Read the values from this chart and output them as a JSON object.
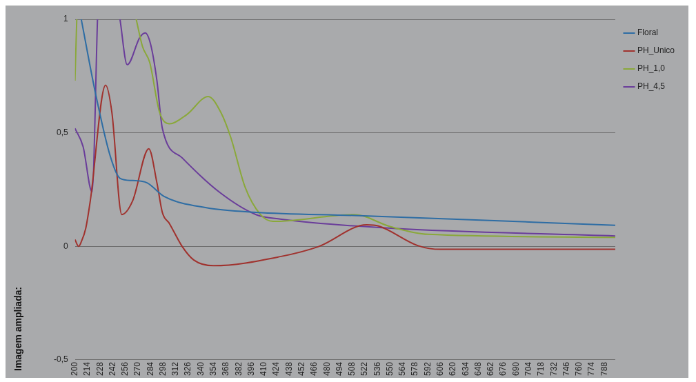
{
  "chart_data": {
    "type": "line",
    "annotations": [
      "Imagem ampliada:"
    ],
    "xlim": [
      200,
      800
    ],
    "xticks": [
      200,
      214,
      228,
      242,
      256,
      270,
      284,
      298,
      312,
      326,
      340,
      354,
      368,
      382,
      396,
      410,
      424,
      438,
      452,
      466,
      480,
      494,
      508,
      522,
      536,
      550,
      564,
      578,
      592,
      606,
      620,
      634,
      648,
      662,
      676,
      690,
      704,
      718,
      732,
      746,
      760,
      774,
      788
    ],
    "ylim": [
      -0.5,
      1
    ],
    "yticks": [
      {
        "value": -0.5,
        "label": "-0,5"
      },
      0,
      {
        "value": 0.5,
        "label": "0,5"
      },
      1
    ],
    "grid": "y",
    "legend": "top right",
    "marker": "none",
    "series": [
      {
        "name": "Floral",
        "color": "#2e6da4",
        "values": [
          1,
          0.67,
          0.4,
          0.3,
          0.29,
          0.28,
          0.22,
          0.17,
          0.15,
          0.136,
          0.093
        ],
        "x": [
          207,
          223,
          239,
          250,
          264,
          280,
          299,
          346,
          401,
          510,
          800
        ]
      },
      {
        "name": "PH_Unico",
        "color": "#a0322e",
        "x": [
          200,
          204,
          207,
          212,
          217,
          234,
          241,
          252,
          264,
          282,
          291,
          297,
          305,
          319,
          332,
          354,
          428,
          471,
          524,
          537,
          581,
          606,
          800
        ],
        "values": [
          0.03,
          0.0,
          0.02,
          0.08,
          0.2,
          0.71,
          0.59,
          0.14,
          0.2,
          0.43,
          0.28,
          0.15,
          0.1,
          0,
          -0.06,
          -0.085,
          -0.045,
          0,
          0.095,
          0.09,
          0.003,
          -0.013,
          -0.013
        ]
      },
      {
        "name": "PH_1,0",
        "color": "#8aa83a",
        "x": [
          200,
          202,
          203,
          268,
          275,
          283,
          294,
          305,
          324,
          348,
          362,
          373,
          389,
          406,
          420,
          510,
          551,
          592,
          800
        ],
        "values": [
          0.73,
          1,
          null,
          1,
          0.88,
          0.81,
          0.59,
          0.54,
          0.58,
          0.66,
          0.59,
          0.48,
          0.26,
          0.14,
          0.11,
          0.14,
          0.086,
          0.053,
          0.04
        ]
      },
      {
        "name": "PH_4,5",
        "color": "#6a3d9a",
        "x": [
          200,
          209,
          219,
          225,
          226,
          249,
          250,
          258,
          272,
          278,
          284,
          291,
          297,
          319,
          360,
          401,
          428,
          551,
          800
        ],
        "values": [
          0.52,
          0.44,
          0.24,
          1,
          null,
          null,
          1,
          0.8,
          0.92,
          0.94,
          0.89,
          0.73,
          0.52,
          0.39,
          0.24,
          0.14,
          0.12,
          0.08,
          0.046
        ]
      }
    ]
  }
}
